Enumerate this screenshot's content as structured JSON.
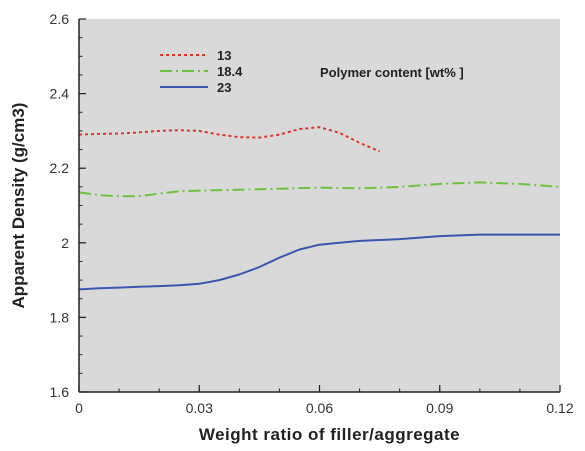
{
  "chart_data": {
    "type": "line",
    "xlabel": "Weight ratio of filler/aggregate",
    "ylabel": "Apparent Density (g/cm3)",
    "xlim": [
      0,
      0.12
    ],
    "ylim": [
      1.6,
      2.6
    ],
    "x_ticks": [
      "0",
      "0.03",
      "0.06",
      "0.09",
      "0.12"
    ],
    "y_ticks": [
      "1.6",
      "1.8",
      "2",
      "2.2",
      "2.4",
      "2.6"
    ],
    "legend_title": "Polymer content [wt% ]",
    "legend_position": "top-left",
    "grid": false,
    "plot_background": "#d9d9d9",
    "series": [
      {
        "name": "13",
        "color": "#e0302a",
        "style": "dotted",
        "x": [
          0,
          0.005,
          0.01,
          0.015,
          0.02,
          0.025,
          0.03,
          0.035,
          0.04,
          0.045,
          0.05,
          0.055,
          0.06,
          0.065,
          0.07,
          0.075
        ],
        "y": [
          2.29,
          2.292,
          2.293,
          2.296,
          2.3,
          2.302,
          2.3,
          2.29,
          2.283,
          2.282,
          2.29,
          2.305,
          2.31,
          2.295,
          2.268,
          2.245
        ]
      },
      {
        "name": "18.4",
        "color": "#6cc33a",
        "style": "dash-dot",
        "x": [
          0,
          0.005,
          0.01,
          0.015,
          0.02,
          0.025,
          0.03,
          0.04,
          0.05,
          0.06,
          0.07,
          0.08,
          0.09,
          0.1,
          0.11,
          0.12
        ],
        "y": [
          2.135,
          2.128,
          2.125,
          2.125,
          2.132,
          2.138,
          2.14,
          2.142,
          2.145,
          2.148,
          2.146,
          2.15,
          2.158,
          2.162,
          2.158,
          2.15
        ]
      },
      {
        "name": "23",
        "color": "#3a56b3",
        "style": "solid",
        "x": [
          0,
          0.005,
          0.01,
          0.015,
          0.02,
          0.025,
          0.03,
          0.035,
          0.04,
          0.045,
          0.05,
          0.055,
          0.06,
          0.065,
          0.07,
          0.08,
          0.09,
          0.1,
          0.11,
          0.12
        ],
        "y": [
          1.875,
          1.878,
          1.88,
          1.882,
          1.884,
          1.886,
          1.89,
          1.9,
          1.915,
          1.935,
          1.96,
          1.982,
          1.995,
          2.0,
          2.005,
          2.01,
          2.018,
          2.022,
          2.022,
          2.022
        ]
      }
    ]
  }
}
